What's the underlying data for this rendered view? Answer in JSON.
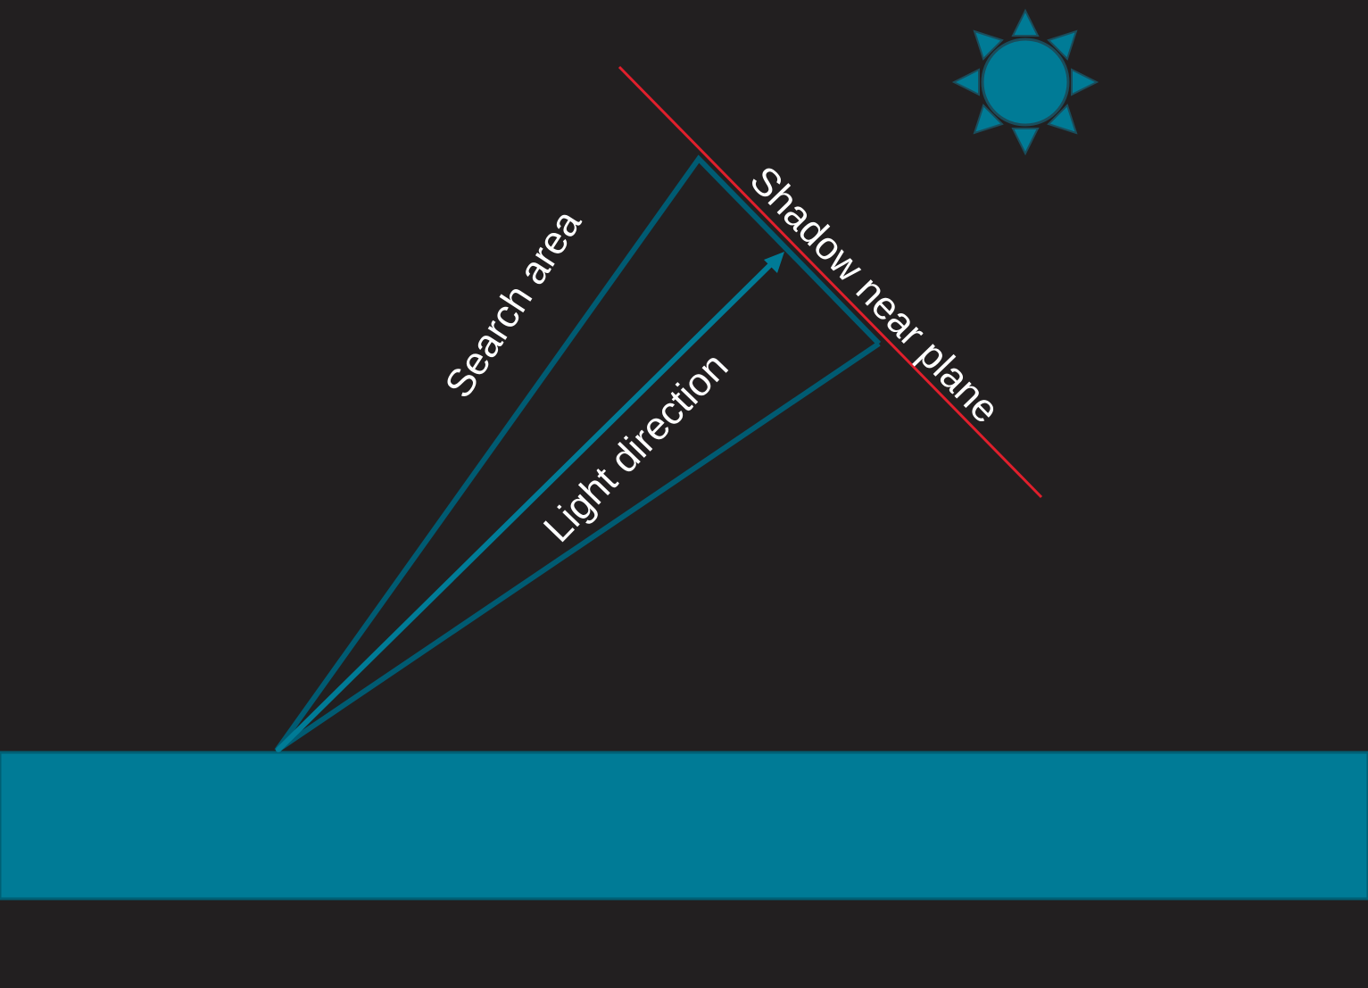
{
  "labels": {
    "search_area": "Search area",
    "light_direction": "Light direction",
    "shadow_near_plane": "Shadow near plane"
  },
  "colors": {
    "background": "#221f20",
    "ground": "#007b96",
    "ground_edge": "#005f74",
    "search_cone": "#005b72",
    "light_arrow": "#007b96",
    "near_plane": "#e01f2c",
    "sun": "#007b96",
    "sun_outline": "#1a4d5c",
    "label_text": "#ffffff"
  },
  "icons": {
    "sun": "sun-icon",
    "arrowhead": "arrowhead-icon"
  }
}
